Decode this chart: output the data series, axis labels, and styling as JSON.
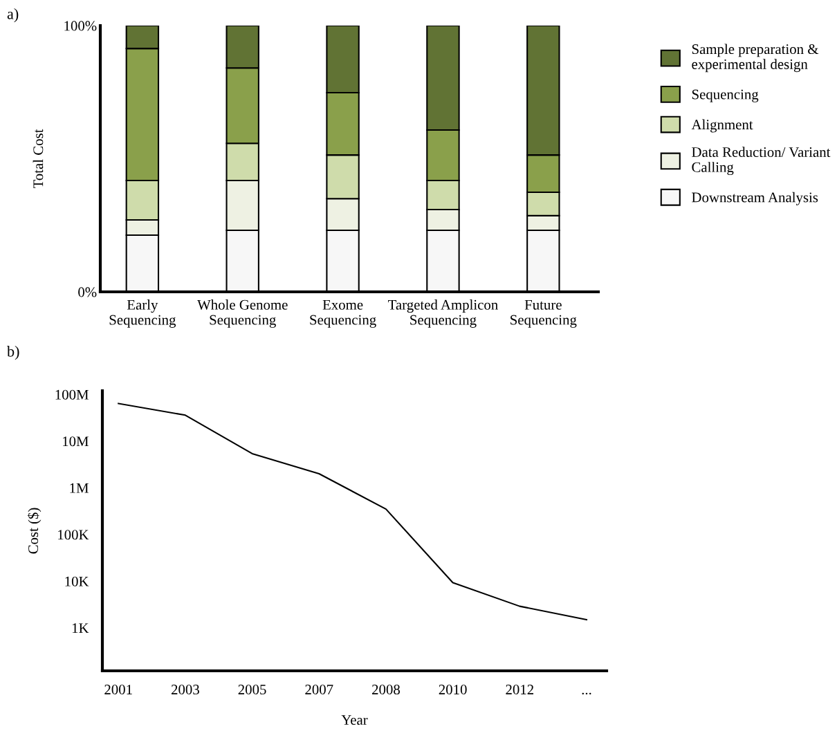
{
  "chart_data": [
    {
      "type": "bar",
      "stacked": true,
      "ylabel": "Total Cost",
      "annotations": [
        "a)"
      ],
      "categories": [
        "Early\nSequencing",
        "Whole Genome\nSequencing",
        "Exome\nSequencing",
        "Targeted Amplicon\nSequencing",
        "Future\nSequencing"
      ],
      "series": [
        {
          "name": "Downstream Analysis",
          "color": "#f7f7f7",
          "values": [
            21.3,
            23.1,
            23.1,
            23.1,
            23.1
          ]
        },
        {
          "name": "Data Reduction/ Variant\nCalling",
          "color": "#eef1e3",
          "values": [
            5.7,
            18.7,
            11.9,
            7.8,
            5.5
          ]
        },
        {
          "name": "Alignment",
          "color": "#cfdcab",
          "values": [
            14.8,
            14.0,
            16.4,
            10.9,
            8.8
          ]
        },
        {
          "name": "Sequencing",
          "color": "#8aa04b",
          "values": [
            49.6,
            28.3,
            23.4,
            19.0,
            14.0
          ]
        },
        {
          "name": "Sample preparation &\nexperimental design",
          "color": "#617334",
          "values": [
            8.6,
            15.9,
            25.2,
            39.2,
            48.6
          ]
        }
      ],
      "ylim": [
        0,
        100
      ],
      "yticks": [
        {
          "value": 0,
          "label": "0%"
        },
        {
          "value": 100,
          "label": "100%"
        }
      ],
      "legend": "right",
      "grid": false
    },
    {
      "type": "line",
      "xlabel": "Year",
      "ylabel": "Cost ($)",
      "annotations": [
        "b)"
      ],
      "log": "y",
      "categories": [
        "2001",
        "2003",
        "2005",
        "2007",
        "2008",
        "2010",
        "2012",
        "..."
      ],
      "series": [
        {
          "color": "#000000",
          "values": [
            64000000,
            36000000,
            5400000,
            2000000,
            350000,
            9300,
            2900,
            1500
          ]
        }
      ],
      "ylim": [
        120,
        120000000
      ],
      "yticks": [
        {
          "value": 1000,
          "label": "1K"
        },
        {
          "value": 10000,
          "label": "10K"
        },
        {
          "value": 100000,
          "label": "100K"
        },
        {
          "value": 1000000,
          "label": "1M"
        },
        {
          "value": 10000000,
          "label": "10M"
        },
        {
          "value": 100000000,
          "label": "100M"
        }
      ],
      "marker": "none",
      "line_style": "solid",
      "grid": false,
      "legend": false
    }
  ]
}
